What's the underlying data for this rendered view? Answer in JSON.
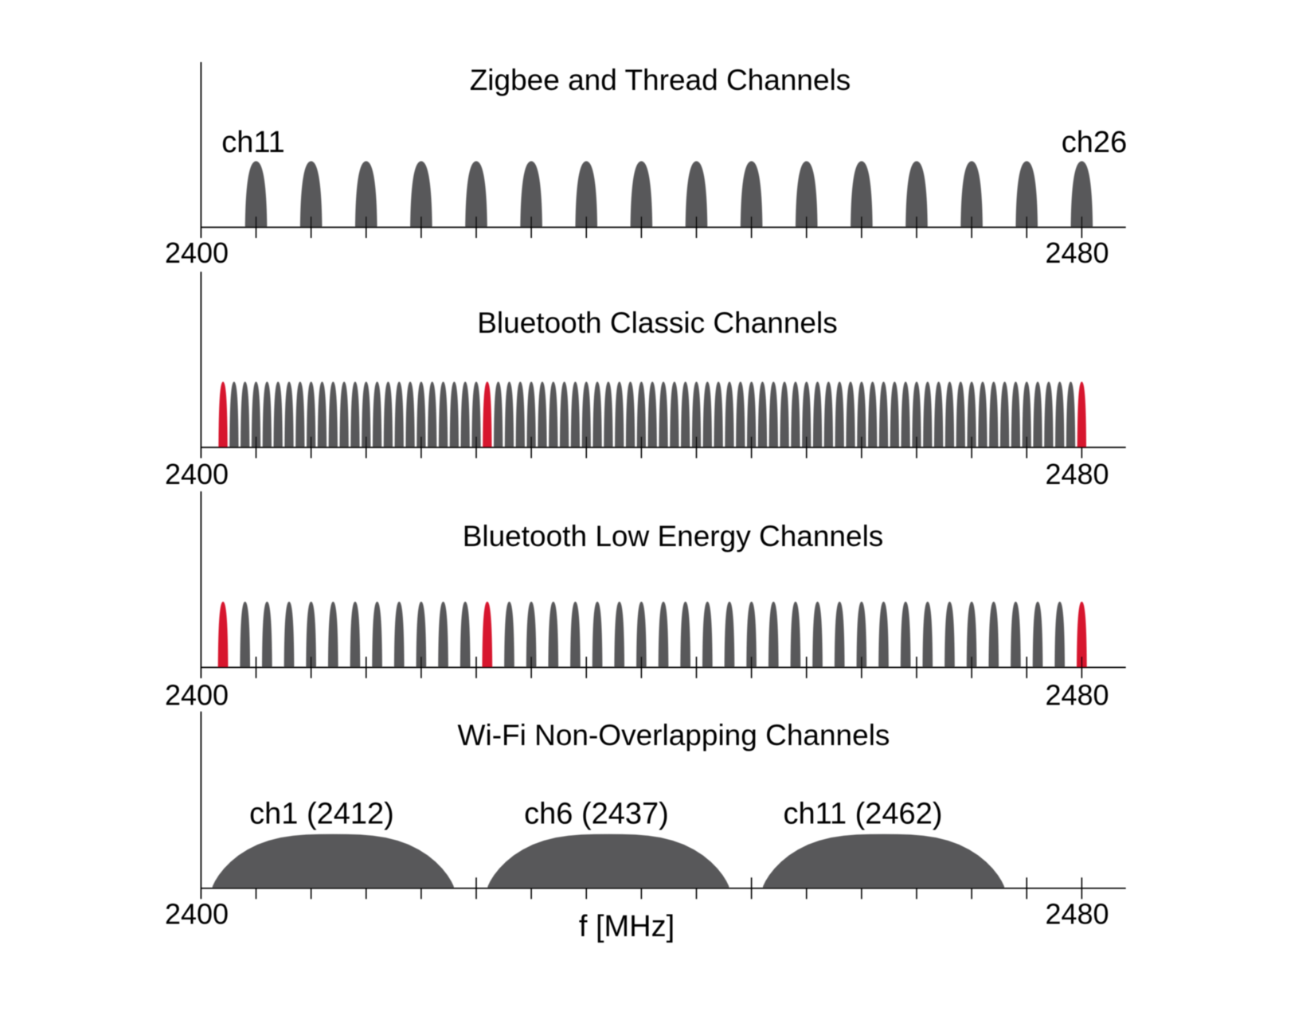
{
  "figure": {
    "background_color": "#ffffff",
    "xlabel": "f [MHz]"
  },
  "chart_data": [
    {
      "type": "area",
      "title": "Zigbee and Thread Channels",
      "xlabel": "",
      "x_range_mhz": [
        2400,
        2480
      ],
      "x_tick_labels": [
        "2400",
        "2480"
      ],
      "x_ticks_mhz": [
        2405,
        2410,
        2415,
        2420,
        2425,
        2430,
        2435,
        2440,
        2445,
        2450,
        2455,
        2460,
        2465,
        2470,
        2475,
        2480
      ],
      "channels_mhz": [
        2405,
        2410,
        2415,
        2420,
        2425,
        2430,
        2435,
        2440,
        2445,
        2450,
        2455,
        2460,
        2465,
        2470,
        2475,
        2480
      ],
      "highlight_mhz": [],
      "channel_bandwidth_mhz": 2,
      "annotations": [
        {
          "text": "ch11",
          "freq_mhz": 2405
        },
        {
          "text": "ch26",
          "freq_mhz": 2480
        }
      ],
      "colors": {
        "lobe": "#58585a",
        "highlight": "#d7182f"
      },
      "legend": "none",
      "grid": false
    },
    {
      "type": "area",
      "title": "Bluetooth Classic Channels",
      "xlabel": "",
      "x_range_mhz": [
        2400,
        2480
      ],
      "x_tick_labels": [
        "2400",
        "2480"
      ],
      "x_ticks_mhz": [
        2405,
        2410,
        2415,
        2420,
        2425,
        2430,
        2435,
        2440,
        2445,
        2450,
        2455,
        2460,
        2465,
        2470,
        2475,
        2480
      ],
      "channels_mhz": [
        2402,
        2403,
        2404,
        2405,
        2406,
        2407,
        2408,
        2409,
        2410,
        2411,
        2412,
        2413,
        2414,
        2415,
        2416,
        2417,
        2418,
        2419,
        2420,
        2421,
        2422,
        2423,
        2424,
        2425,
        2426,
        2427,
        2428,
        2429,
        2430,
        2431,
        2432,
        2433,
        2434,
        2435,
        2436,
        2437,
        2438,
        2439,
        2440,
        2441,
        2442,
        2443,
        2444,
        2445,
        2446,
        2447,
        2448,
        2449,
        2450,
        2451,
        2452,
        2453,
        2454,
        2455,
        2456,
        2457,
        2458,
        2459,
        2460,
        2461,
        2462,
        2463,
        2464,
        2465,
        2466,
        2467,
        2468,
        2469,
        2470,
        2471,
        2472,
        2473,
        2474,
        2475,
        2476,
        2477,
        2478,
        2479,
        2480
      ],
      "highlight_mhz": [
        2402,
        2426,
        2480
      ],
      "channel_bandwidth_mhz": 1,
      "annotations": [],
      "colors": {
        "lobe": "#58585a",
        "highlight": "#d7182f"
      },
      "legend": "none",
      "grid": false
    },
    {
      "type": "area",
      "title": "Bluetooth Low Energy Channels",
      "xlabel": "",
      "x_range_mhz": [
        2400,
        2480
      ],
      "x_tick_labels": [
        "2400",
        "2480"
      ],
      "x_ticks_mhz": [
        2405,
        2410,
        2415,
        2420,
        2425,
        2430,
        2435,
        2440,
        2445,
        2450,
        2455,
        2460,
        2465,
        2470,
        2475,
        2480
      ],
      "channels_mhz": [
        2402,
        2404,
        2406,
        2408,
        2410,
        2412,
        2414,
        2416,
        2418,
        2420,
        2422,
        2424,
        2426,
        2428,
        2430,
        2432,
        2434,
        2436,
        2438,
        2440,
        2442,
        2444,
        2446,
        2448,
        2450,
        2452,
        2454,
        2456,
        2458,
        2460,
        2462,
        2464,
        2466,
        2468,
        2470,
        2472,
        2474,
        2476,
        2478,
        2480
      ],
      "highlight_mhz": [
        2402,
        2426,
        2480
      ],
      "channel_bandwidth_mhz": 1,
      "annotations": [],
      "colors": {
        "lobe": "#58585a",
        "highlight": "#d7182f"
      },
      "legend": "none",
      "grid": false
    },
    {
      "type": "area",
      "title": "Wi-Fi Non-Overlapping Channels",
      "xlabel": "f [MHz]",
      "x_range_mhz": [
        2400,
        2480
      ],
      "x_tick_labels": [
        "2400",
        "2480"
      ],
      "x_ticks_mhz": [
        2405,
        2410,
        2415,
        2420,
        2425,
        2430,
        2435,
        2440,
        2445,
        2450,
        2455,
        2460,
        2465,
        2470,
        2475,
        2480
      ],
      "channels_mhz": [
        2412,
        2437,
        2462
      ],
      "highlight_mhz": [],
      "channel_bandwidth_mhz": 22,
      "annotations": [
        {
          "text": "ch1 (2412)",
          "freq_mhz": 2412
        },
        {
          "text": "ch6 (2437)",
          "freq_mhz": 2437
        },
        {
          "text": "ch11 (2462)",
          "freq_mhz": 2462
        }
      ],
      "colors": {
        "lobe": "#58585a",
        "highlight": "#d7182f"
      },
      "legend": "none",
      "grid": false
    }
  ]
}
